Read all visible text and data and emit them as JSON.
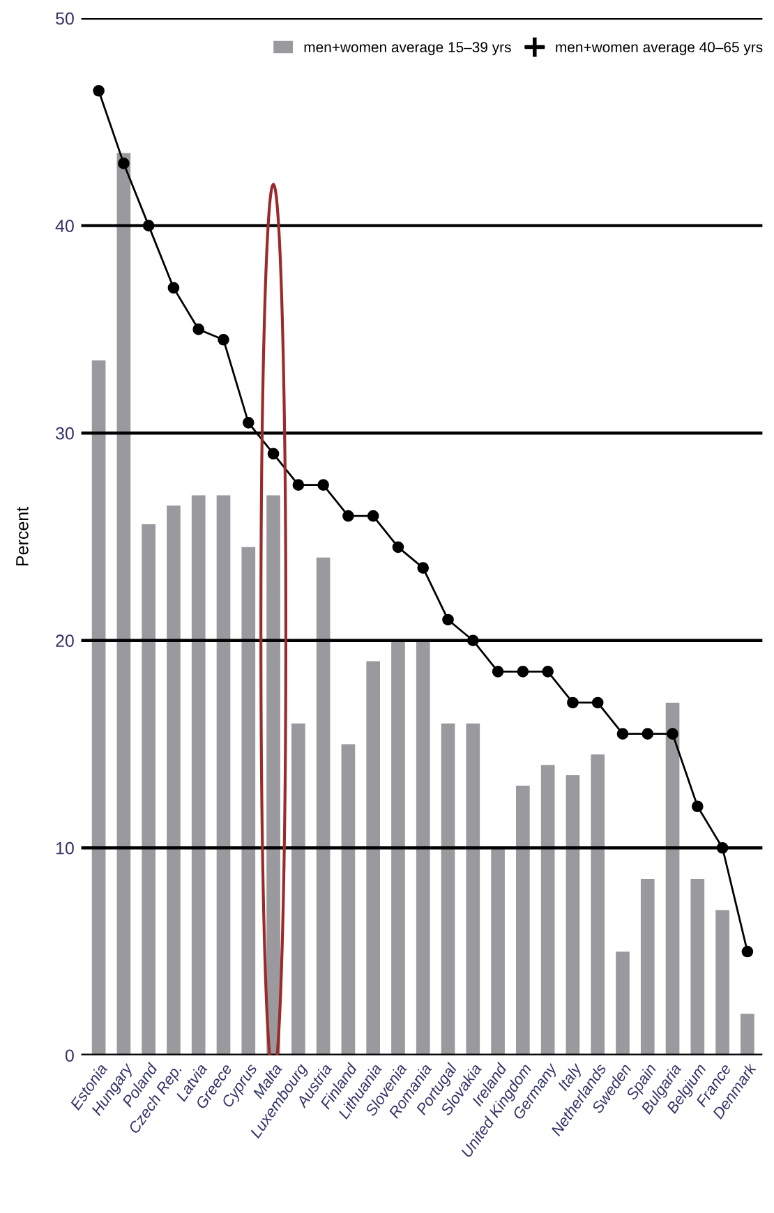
{
  "chart_data": {
    "type": "bar",
    "ylabel": "Percent",
    "categories": [
      "Estonia",
      "Hungary",
      "Poland",
      "Czech Rep.",
      "Latvia",
      "Greece",
      "Cyprus",
      "Malta",
      "Luxembourg",
      "Austria",
      "Finland",
      "Lithuania",
      "Slovenia",
      "Romania",
      "Portugal",
      "Slovakia",
      "Ireland",
      "United Kingdom",
      "Germany",
      "Italy",
      "Netherlands",
      "Sweden",
      "Spain",
      "Bulgaria",
      "Belgium",
      "France",
      "Denmark"
    ],
    "series": [
      {
        "name": "men+women average 15–39 yrs",
        "color": "#9a999e",
        "values": [
          33.5,
          43.5,
          25.6,
          26.5,
          27,
          27,
          24.5,
          27,
          16,
          24,
          15,
          19,
          20,
          20,
          16,
          16,
          10,
          13,
          14,
          13.5,
          14.5,
          5,
          8.5,
          17,
          8.5,
          7,
          2
        ]
      },
      {
        "name": "men+women average 40–65 yrs",
        "type": "line",
        "color": "#000000",
        "values": [
          46.5,
          43,
          40,
          37,
          35,
          34.5,
          30.5,
          29,
          27.5,
          27.5,
          26,
          26,
          24.5,
          23.5,
          21,
          20,
          18.5,
          18.5,
          18.5,
          17,
          17,
          15.5,
          15.5,
          15.5,
          12,
          10,
          5
        ]
      }
    ],
    "ylim": [
      0,
      50
    ],
    "yticks": [
      0,
      10,
      20,
      30,
      40,
      50
    ],
    "grid": "y",
    "legend": "top right",
    "marker": "circle",
    "line_style": "solid"
  }
}
